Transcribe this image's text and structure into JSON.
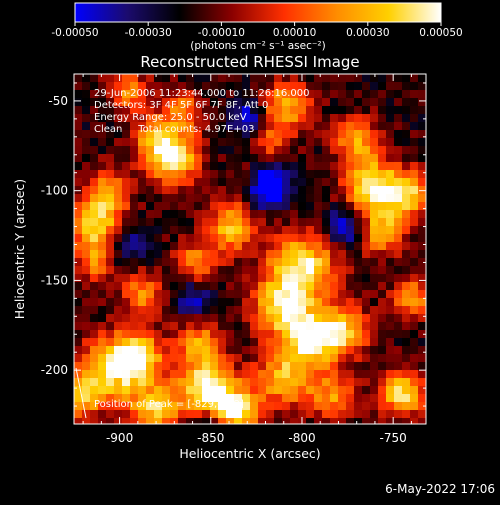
{
  "chart_data": {
    "type": "heatmap",
    "title": "Reconstructed RHESSI Image",
    "xlabel": "Heliocentric X (arcsec)",
    "ylabel": "Heliocentric Y (arcsec)",
    "xlim": [
      -925,
      -732
    ],
    "ylim": [
      -230,
      -35
    ],
    "x_ticks": [
      -900,
      -850,
      -800,
      -750
    ],
    "x_tick_labels": [
      "-900",
      "-850",
      "-800",
      "-750"
    ],
    "y_ticks": [
      -200,
      -150,
      -100,
      -50
    ],
    "y_tick_labels": [
      "-200",
      "-150",
      "-100",
      "-50"
    ],
    "colorbar": {
      "range": [
        -0.0005,
        0.0005
      ],
      "ticks": [
        -0.0005,
        -0.0003,
        -0.0001,
        0.0001,
        0.0003,
        0.0005
      ],
      "tick_labels": [
        "-0.00050",
        "-0.00030",
        "-0.00010",
        "0.00010",
        "0.00030",
        "0.00050"
      ],
      "units_label": "(photons cm⁻² s⁻¹ asec⁻²)",
      "colors": [
        "#0000ff",
        "#1b0b6e",
        "#000000",
        "#8b0000",
        "#ff3000",
        "#ff8c00",
        "#ffd000",
        "#ffffff"
      ]
    },
    "annotations": [
      "29-Jun-2006 11:23:44.000 to 11:26:16.000",
      "Detectors: 3F 4F 5F 6F 7F 8F, Att 0",
      "Energy Range: 25.0 - 50.0 keV",
      "Clean     Total counts: 4.97E+03",
      "Position of Peak = [-829,-219]"
    ],
    "sources": [
      {
        "x": -852,
        "y": -210,
        "v": 1.0,
        "r": 11
      },
      {
        "x": -836,
        "y": -224,
        "v": 0.95,
        "r": 9
      },
      {
        "x": -904,
        "y": -200,
        "v": 0.8,
        "r": 13
      },
      {
        "x": -889,
        "y": -192,
        "v": 0.7,
        "r": 10
      },
      {
        "x": -870,
        "y": -82,
        "v": 0.9,
        "r": 10
      },
      {
        "x": -880,
        "y": -70,
        "v": 0.6,
        "r": 9
      },
      {
        "x": -800,
        "y": -143,
        "v": 0.95,
        "r": 13
      },
      {
        "x": -812,
        "y": -165,
        "v": 0.8,
        "r": 11
      },
      {
        "x": -795,
        "y": -183,
        "v": 0.9,
        "r": 11
      },
      {
        "x": -810,
        "y": -205,
        "v": 0.7,
        "r": 11
      },
      {
        "x": -777,
        "y": -178,
        "v": 0.7,
        "r": 10
      },
      {
        "x": -762,
        "y": -98,
        "v": 0.9,
        "r": 11
      },
      {
        "x": -757,
        "y": -123,
        "v": 0.7,
        "r": 9
      },
      {
        "x": -742,
        "y": -102,
        "v": 0.8,
        "r": 9
      },
      {
        "x": -770,
        "y": -72,
        "v": 0.6,
        "r": 9
      },
      {
        "x": -745,
        "y": -213,
        "v": 0.9,
        "r": 9
      },
      {
        "x": -912,
        "y": -120,
        "v": 0.85,
        "r": 10
      },
      {
        "x": -907,
        "y": -100,
        "v": 0.6,
        "r": 9
      },
      {
        "x": -912,
        "y": -140,
        "v": 0.5,
        "r": 8
      },
      {
        "x": -838,
        "y": -120,
        "v": 0.75,
        "r": 10
      },
      {
        "x": -858,
        "y": -140,
        "v": 0.6,
        "r": 8
      },
      {
        "x": -808,
        "y": -52,
        "v": 0.7,
        "r": 9
      },
      {
        "x": -818,
        "y": -72,
        "v": 0.5,
        "r": 8
      },
      {
        "x": -888,
        "y": -157,
        "v": 0.6,
        "r": 8
      },
      {
        "x": -857,
        "y": -185,
        "v": 0.6,
        "r": 9
      },
      {
        "x": -880,
        "y": -222,
        "v": 0.75,
        "r": 10
      },
      {
        "x": -922,
        "y": -215,
        "v": 0.7,
        "r": 8
      },
      {
        "x": -865,
        "y": -55,
        "v": 0.5,
        "r": 8
      },
      {
        "x": -895,
        "y": -45,
        "v": 0.55,
        "r": 8
      },
      {
        "x": -740,
        "y": -160,
        "v": 0.6,
        "r": 8
      },
      {
        "x": -783,
        "y": -215,
        "v": 0.6,
        "r": 9
      },
      {
        "x": -830,
        "y": -95,
        "v": 0.45,
        "r": 7
      }
    ],
    "dips": [
      {
        "x": -820,
        "y": -97,
        "v": -0.9,
        "r": 9
      },
      {
        "x": -850,
        "y": -235,
        "v": -0.7,
        "r": 8
      },
      {
        "x": -898,
        "y": -130,
        "v": -0.5,
        "r": 8
      },
      {
        "x": -775,
        "y": -120,
        "v": -0.6,
        "r": 8
      },
      {
        "x": -860,
        "y": -160,
        "v": -0.4,
        "r": 8
      },
      {
        "x": -830,
        "y": -60,
        "v": -0.5,
        "r": 7
      }
    ]
  },
  "footer": {
    "date": "6-May-2022 17:06"
  }
}
